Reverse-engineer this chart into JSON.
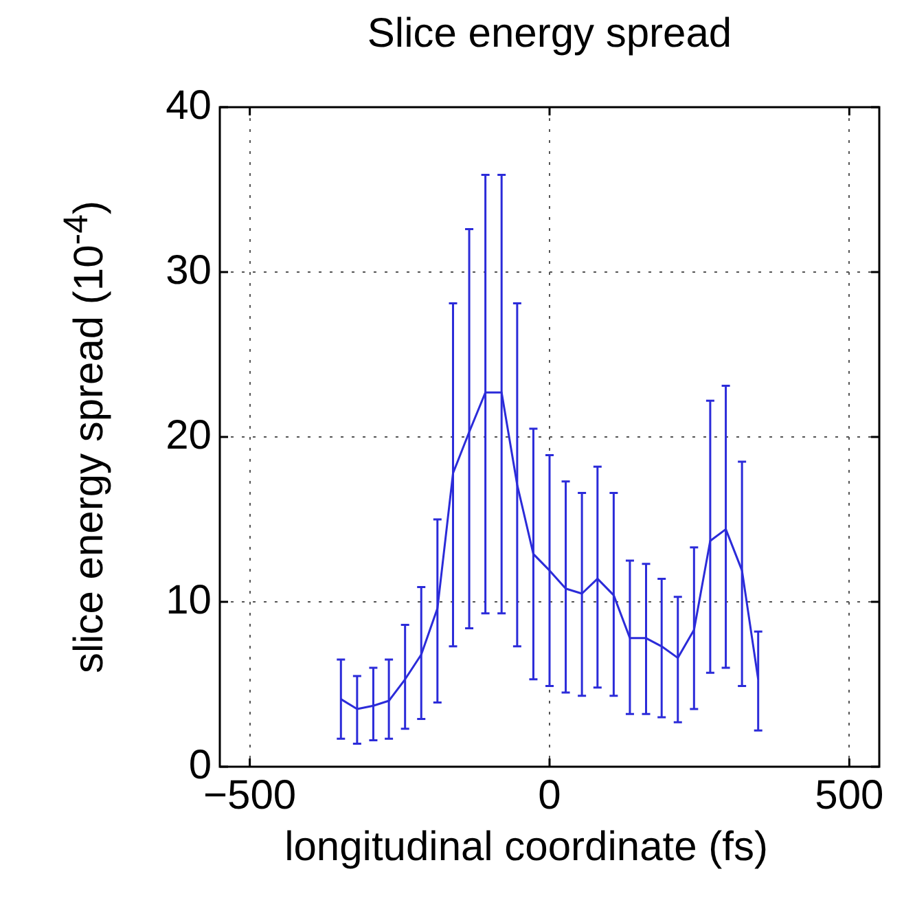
{
  "chart_data": {
    "type": "line",
    "title": "Slice energy spread",
    "xlabel": "longitudinal coordinate (fs)",
    "ylabel": "slice energy spread (10$^{-4}$)",
    "x": [
      -348,
      -321,
      -294,
      -268,
      -241,
      -214,
      -187,
      -161,
      -134,
      -107,
      -80,
      -54,
      -27,
      0,
      27,
      54,
      80,
      107,
      134,
      161,
      187,
      214,
      241,
      268,
      294,
      321,
      348
    ],
    "series": [
      {
        "color": "#2b2bd9",
        "values": [
          4.1,
          3.5,
          3.7,
          4.0,
          5.3,
          6.8,
          9.6,
          17.8,
          20.3,
          22.7,
          22.7,
          17.1,
          12.9,
          11.9,
          10.8,
          10.5,
          11.4,
          10.4,
          7.8,
          7.8,
          7.3,
          6.6,
          8.3,
          13.7,
          14.4,
          11.9,
          5.3
        ],
        "errors": [
          [
            1.7,
            6.5
          ],
          [
            1.4,
            5.5
          ],
          [
            1.6,
            6.0
          ],
          [
            1.7,
            6.5
          ],
          [
            2.3,
            8.6
          ],
          [
            2.9,
            10.9
          ],
          [
            3.9,
            15.0
          ],
          [
            7.3,
            28.1
          ],
          [
            8.4,
            32.6
          ],
          [
            9.3,
            35.9
          ],
          [
            9.3,
            35.9
          ],
          [
            7.3,
            28.1
          ],
          [
            5.3,
            20.5
          ],
          [
            4.9,
            18.9
          ],
          [
            4.5,
            17.3
          ],
          [
            4.3,
            16.6
          ],
          [
            4.8,
            18.2
          ],
          [
            4.3,
            16.6
          ],
          [
            3.2,
            12.5
          ],
          [
            3.2,
            12.3
          ],
          [
            3.0,
            11.4
          ],
          [
            2.7,
            10.3
          ],
          [
            3.5,
            13.3
          ],
          [
            5.7,
            22.2
          ],
          [
            6.0,
            23.1
          ],
          [
            4.9,
            18.5
          ],
          [
            2.2,
            8.2
          ]
        ]
      }
    ],
    "xlim": [
      -550,
      550
    ],
    "ylim": [
      0,
      40
    ],
    "xticks": [
      -500,
      0,
      500
    ],
    "yticks": [
      0,
      10,
      20,
      30,
      40
    ],
    "grid": true
  }
}
